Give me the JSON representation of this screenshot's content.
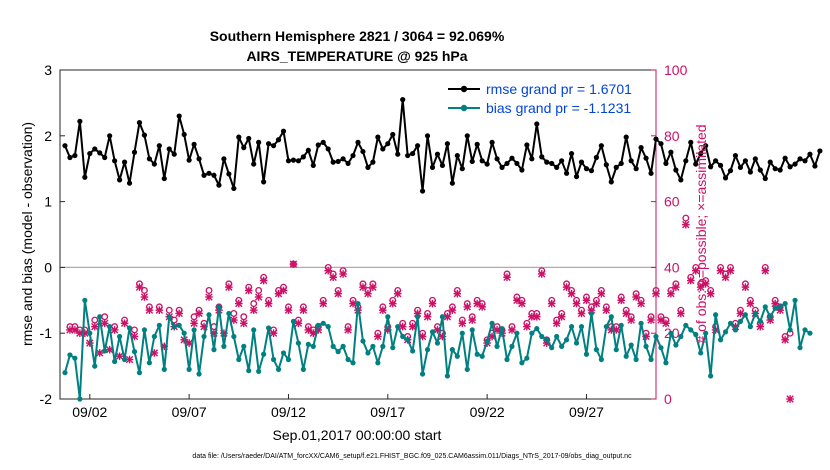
{
  "chart_data": {
    "type": "line",
    "title": "Southern Hemisphere 2821 / 3064 = 92.069%",
    "subtitle": "AIRS_TEMPERATURE @ 925 hPa",
    "xlabel": "Sep.01,2017 00:00:00 start",
    "ylabel_left": "rmse and bias (model - observation)",
    "ylabel_right": "# of obs: o=possible; ×=assimilated",
    "xlim": [
      0.5,
      30.5
    ],
    "ylim_left": [
      -2,
      3
    ],
    "ylim_right": [
      0,
      100
    ],
    "x_tick_labels": [
      {
        "x": 2,
        "label": "09/02"
      },
      {
        "x": 7,
        "label": "09/07"
      },
      {
        "x": 12,
        "label": "09/12"
      },
      {
        "x": 17,
        "label": "09/17"
      },
      {
        "x": 22,
        "label": "09/22"
      },
      {
        "x": 27,
        "label": "09/27"
      }
    ],
    "y_ticks_left": [
      -2,
      -1,
      0,
      1,
      2,
      3
    ],
    "y_ticks_right": [
      0,
      20,
      40,
      60,
      80,
      100
    ],
    "zero_line": 0,
    "footnote": "data file: /Users/raeder/DAI/ATM_forcXX/CAM6_setup/f.e21.FHIST_BGC.f09_025.CAM6assim.011/Diags_NTrS_2017-09/obs_diag_output.nc",
    "colors": {
      "rmse": "#000000",
      "bias": "#008080",
      "obs": "#cc1166",
      "right_axis": "#cc1166",
      "legend_text": "#0044dd",
      "zero_line": "#b8a8a8"
    },
    "legend": [
      {
        "label": "rmse grand pr = 1.6701",
        "series": "rmse"
      },
      {
        "label": "bias grand pr = -1.1231",
        "series": "bias"
      }
    ],
    "x_start": 0.75,
    "x_step": 0.25,
    "series": [
      {
        "name": "rmse",
        "axis": "left",
        "values": [
          1.85,
          1.67,
          1.7,
          2.22,
          1.37,
          1.73,
          1.8,
          1.74,
          1.67,
          2.0,
          1.62,
          1.33,
          1.6,
          1.28,
          1.75,
          2.2,
          2.01,
          1.65,
          1.57,
          1.85,
          1.35,
          1.8,
          1.72,
          2.3,
          2.02,
          1.63,
          1.87,
          1.65,
          1.4,
          1.43,
          1.4,
          1.25,
          1.65,
          1.42,
          1.2,
          1.98,
          1.82,
          1.96,
          1.57,
          1.9,
          1.3,
          1.88,
          1.85,
          1.94,
          2.07,
          1.62,
          1.63,
          1.62,
          1.68,
          1.78,
          1.55,
          1.86,
          1.9,
          1.8,
          1.6,
          1.61,
          1.65,
          1.58,
          1.7,
          1.9,
          1.76,
          1.52,
          1.6,
          1.98,
          1.8,
          1.88,
          2.02,
          1.72,
          2.55,
          1.7,
          1.73,
          1.85,
          1.16,
          2.0,
          1.52,
          1.72,
          1.55,
          1.88,
          1.28,
          1.7,
          1.5,
          2.0,
          1.61,
          1.87,
          1.62,
          1.57,
          1.9,
          1.65,
          1.52,
          1.58,
          1.66,
          1.58,
          1.48,
          1.86,
          1.65,
          2.18,
          1.68,
          1.6,
          1.58,
          1.52,
          1.62,
          1.43,
          1.73,
          1.38,
          1.6,
          1.5,
          1.47,
          1.67,
          1.85,
          1.56,
          1.3,
          1.52,
          1.58,
          1.98,
          1.62,
          1.5,
          1.82,
          1.66,
          1.43,
          1.95,
          1.88,
          1.58,
          1.75,
          1.48,
          1.33,
          1.62,
          1.9,
          1.57,
          1.73,
          1.85,
          1.53,
          1.62,
          1.55,
          1.36,
          1.47,
          1.7,
          1.52,
          1.62,
          1.45,
          1.65,
          1.48,
          1.35,
          1.6,
          1.5,
          1.48,
          1.66,
          1.53,
          1.57,
          1.65,
          1.62,
          1.72,
          1.54,
          1.77
        ]
      },
      {
        "name": "bias",
        "axis": "left",
        "values": [
          -1.6,
          -1.33,
          -1.38,
          -2.0,
          -0.5,
          -1.0,
          -1.5,
          -0.75,
          -1.27,
          -0.9,
          -1.43,
          -1.05,
          -1.4,
          -0.92,
          -1.28,
          -1.6,
          -0.95,
          -1.45,
          -1.05,
          -0.88,
          -1.55,
          -0.75,
          -0.9,
          -0.88,
          -1.0,
          -1.55,
          -0.95,
          -1.62,
          -1.05,
          -0.72,
          -1.25,
          -0.6,
          -1.2,
          -0.7,
          -1.05,
          -1.4,
          -1.2,
          -1.57,
          -0.95,
          -1.58,
          -1.32,
          -0.92,
          -1.4,
          -1.55,
          -1.3,
          -1.4,
          -0.82,
          -1.15,
          -1.55,
          -1.17,
          -1.2,
          -0.88,
          -0.85,
          -0.9,
          -1.2,
          -1.28,
          -1.2,
          -1.4,
          -1.45,
          -0.55,
          -1.12,
          -1.3,
          -1.2,
          -1.45,
          -1.2,
          -0.75,
          -1.22,
          -0.9,
          -1.05,
          -1.1,
          -1.27,
          -0.75,
          -1.62,
          -1.25,
          -0.98,
          -1.15,
          -0.75,
          -1.65,
          -1.25,
          -1.35,
          -1.0,
          -1.55,
          -0.95,
          -1.32,
          -1.35,
          -1.12,
          -0.85,
          -1.2,
          -0.93,
          -1.4,
          -1.2,
          -1.0,
          -1.45,
          -1.38,
          -1.0,
          -0.93,
          -1.05,
          -1.1,
          -1.22,
          -1.05,
          -1.2,
          -1.1,
          -0.9,
          -1.15,
          -0.9,
          -1.32,
          -0.7,
          -1.25,
          -1.4,
          -0.9,
          -0.75,
          -1.25,
          -0.88,
          -1.35,
          -1.18,
          -1.4,
          -0.85,
          -1.2,
          -1.4,
          -1.05,
          -1.22,
          -1.45,
          -1.0,
          -1.18,
          -1.05,
          -0.88,
          -0.95,
          -1.02,
          -1.3,
          -1.0,
          -1.65,
          -0.72,
          -1.1,
          -0.98,
          -0.85,
          -0.95,
          -0.82,
          -0.72,
          -0.9,
          -0.7,
          -0.82,
          -0.6,
          -0.75,
          -0.62,
          -0.6,
          -0.55,
          -0.95,
          -0.5,
          -1.22,
          -0.95,
          -1.0
        ]
      },
      {
        "name": "possible",
        "axis": "right",
        "marker": "o",
        "values": [
          null,
          22,
          22,
          21,
          21,
          null,
          24,
          null,
          25,
          null,
          22,
          null,
          24,
          null,
          21,
          35,
          33,
          28,
          null,
          28,
          null,
          27,
          24,
          27,
          null,
          null,
          25,
          27,
          23,
          33,
          22,
          28,
          null,
          35,
          26,
          30,
          25,
          34,
          29,
          33,
          37,
          30,
          21,
          33,
          34,
          28,
          41,
          24,
          28,
          22,
          21,
          22,
          30,
          40,
          38,
          33,
          39,
          22,
          30,
          28,
          35,
          33,
          35,
          20,
          28,
          22,
          30,
          33,
          23,
          19,
          23,
          27,
          20,
          26,
          30,
          22,
          20,
          26,
          28,
          33,
          24,
          29,
          25,
          30,
          29,
          18,
          20,
          22,
          21,
          38,
          22,
          31,
          30,
          23,
          26,
          26,
          39,
          18,
          30,
          24,
          26,
          35,
          33,
          30,
          27,
          31,
          28,
          30,
          33,
          28,
          22,
          22,
          31,
          27,
          25,
          32,
          30,
          20,
          25,
          33,
          25,
          24,
          33,
          35,
          27,
          55,
          37,
          40,
          35,
          36,
          33,
          22,
          40,
          38,
          40,
          23,
          27,
          35,
          30,
          27,
          23,
          40,
          25,
          30,
          28,
          19,
          20
        ]
      },
      {
        "name": "assimilated",
        "axis": "right",
        "marker": "x",
        "values": [
          null,
          21,
          21,
          20,
          20,
          17,
          22,
          14,
          23,
          15,
          21,
          13,
          23,
          12,
          19,
          34,
          31,
          27,
          14,
          27,
          16,
          25,
          22,
          26,
          18,
          17,
          23,
          26,
          22,
          31,
          20,
          27,
          20,
          34,
          24,
          29,
          23,
          33,
          27,
          31,
          36,
          29,
          20,
          32,
          33,
          27,
          41,
          23,
          27,
          21,
          20,
          21,
          29,
          39,
          37,
          32,
          38,
          21,
          29,
          27,
          34,
          32,
          34,
          19,
          27,
          21,
          29,
          32,
          22,
          18,
          22,
          26,
          19,
          25,
          29,
          21,
          19,
          25,
          27,
          32,
          23,
          28,
          24,
          29,
          28,
          17,
          19,
          21,
          20,
          37,
          21,
          30,
          29,
          22,
          25,
          25,
          38,
          17,
          29,
          23,
          25,
          34,
          32,
          29,
          26,
          30,
          27,
          29,
          32,
          27,
          21,
          21,
          30,
          26,
          24,
          31,
          29,
          19,
          24,
          32,
          24,
          23,
          32,
          34,
          26,
          53,
          36,
          39,
          34,
          35,
          32,
          21,
          39,
          37,
          39,
          22,
          26,
          34,
          29,
          26,
          22,
          39,
          24,
          29,
          27,
          18,
          0
        ]
      }
    ]
  }
}
